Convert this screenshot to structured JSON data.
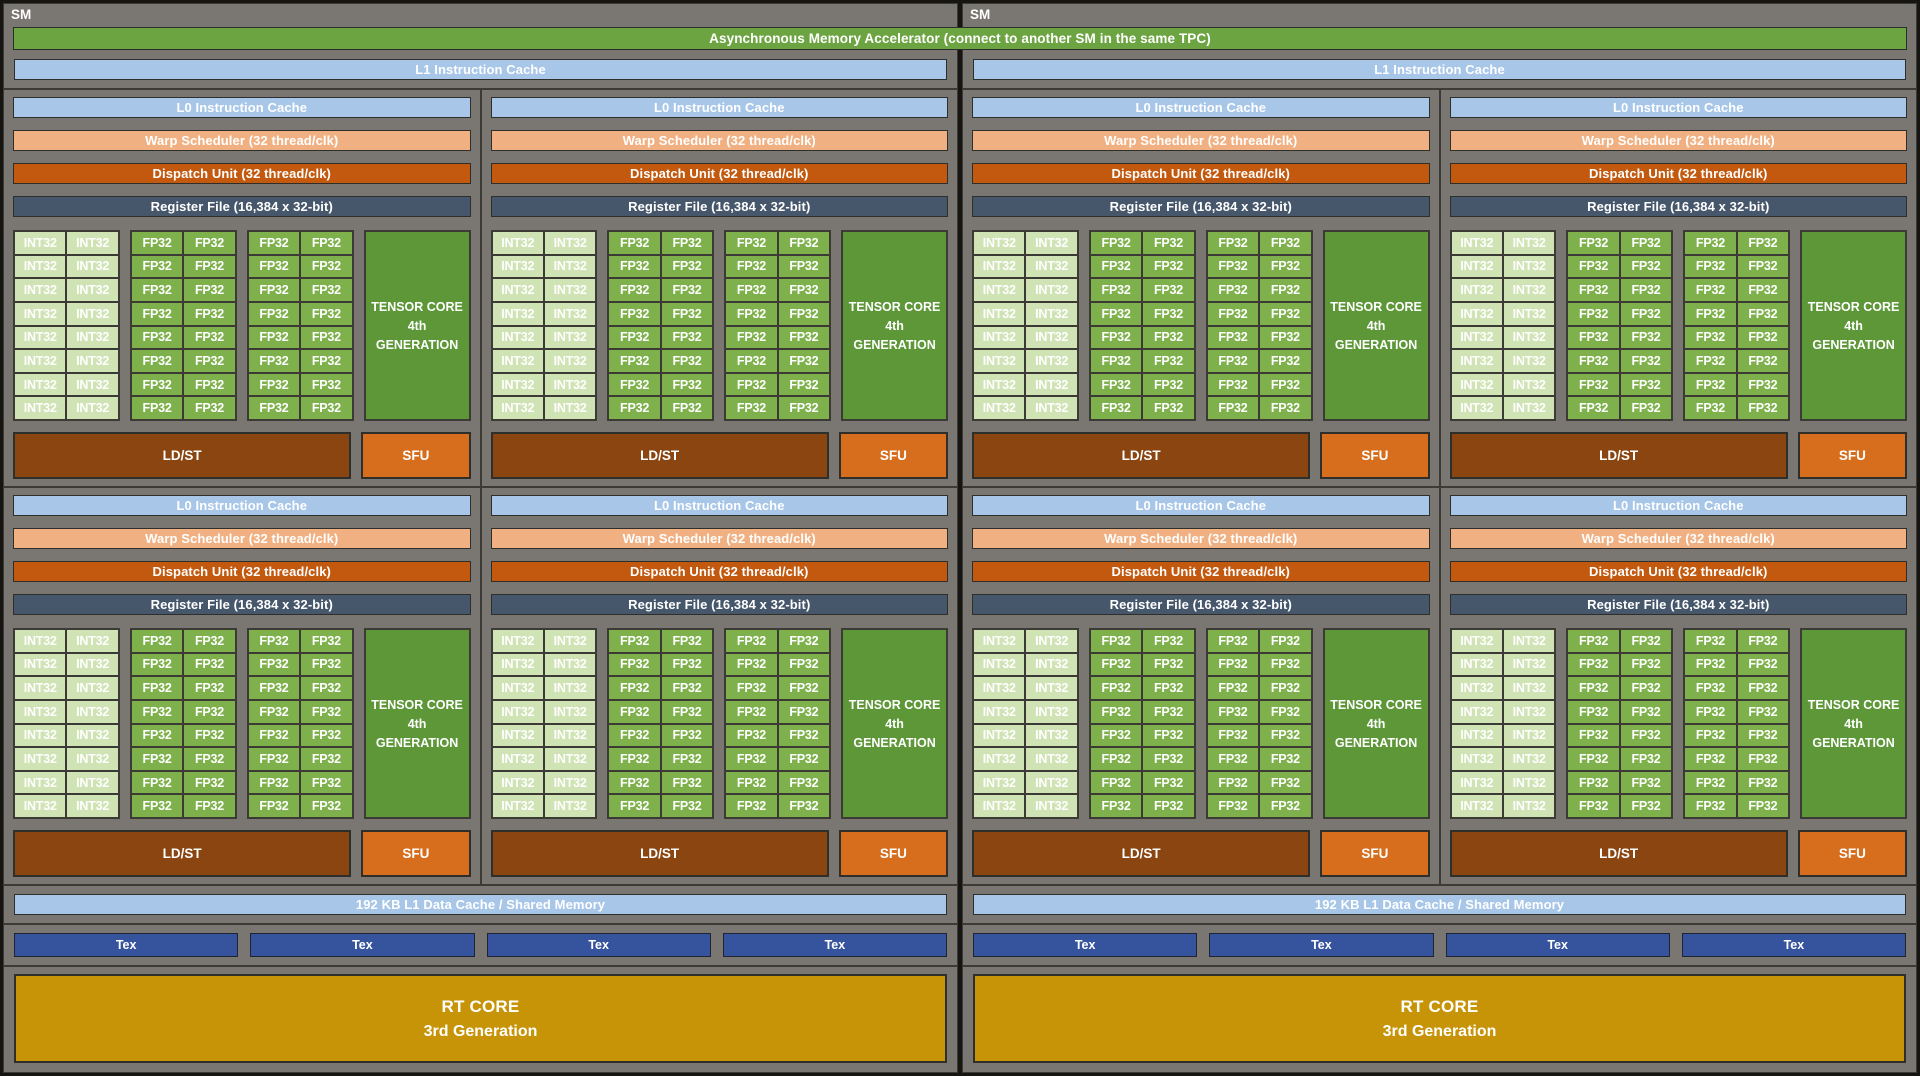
{
  "diagram": {
    "sm_count": 2,
    "sm_label": "SM",
    "ama_label": "Asynchronous Memory Accelerator (connect to another SM in the same TPC)",
    "sm": {
      "l1_instruction_cache": "L1 Instruction Cache",
      "l1_data_cache": "192 KB L1 Data Cache / Shared Memory",
      "tex_label": "Tex",
      "tex_count": 4,
      "rt_core": {
        "line1": "RT CORE",
        "line2": "3rd Generation"
      },
      "partition_rows": 2,
      "partition_cols": 2,
      "partition": {
        "l0_instruction_cache": "L0 Instruction Cache",
        "warp_scheduler": "Warp Scheduler (32 thread/clk)",
        "dispatch_unit": "Dispatch Unit (32 thread/clk)",
        "register_file": "Register File (16,384 x 32-bit)",
        "alu_rows": 8,
        "int32_label": "INT32",
        "int32_cols": 2,
        "fp32_label": "FP32",
        "fp32_pair_blocks": 2,
        "fp32_cols_per_block": 2,
        "tensor_core": {
          "line1": "TENSOR CORE",
          "line2": "4th",
          "line3": "GENERATION"
        },
        "ldst_label": "LD/ST",
        "sfu_label": "SFU"
      }
    },
    "colors": {
      "panel_gray": "#7a7672",
      "frame_dark": "#161512",
      "line_dark": "#3b3a35",
      "ama_green": "#6ca441",
      "cache_blue": "#a7c6e8",
      "warp_salmon": "#f1b081",
      "dispatch_orange": "#c2590f",
      "register_slate": "#46566b",
      "int32_green": "#d0e3b4",
      "fp32_green": "#7eb14b",
      "tensor_green": "#5d9738",
      "ldst_brown": "#8a4511",
      "sfu_orange": "#d66e1d",
      "tex_blue": "#36549d",
      "rt_gold": "#c79408",
      "text_white": "#ffffff"
    }
  }
}
